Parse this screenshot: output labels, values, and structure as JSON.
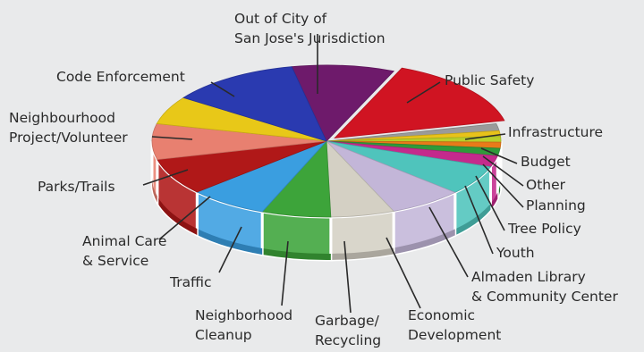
{
  "chart_data": {
    "type": "pie",
    "title": "",
    "categories": [
      "Out of City of San Jose's Jurisdiction",
      "Public Safety",
      "Infrastructure",
      "Budget",
      "Other",
      "Planning",
      "Tree Policy",
      "Youth",
      "Almaden Library & Community Center",
      "Economic Development",
      "Garbage/ Recycling",
      "Neighborhood Cleanup",
      "Traffic",
      "Animal Care & Service",
      "Parks/Trails",
      "Neighbourhood Project/Volunteer",
      "Code Enforcement"
    ],
    "values": [
      9.5,
      15.0,
      1.5,
      1.2,
      1.2,
      1.3,
      1.6,
      2.4,
      6.3,
      6.9,
      5.9,
      6.4,
      7.3,
      7.8,
      7.6,
      6.0,
      12.1
    ],
    "colors": [
      "#6e1a6b",
      "#d01422",
      "#9a9a9a",
      "#e8c21a",
      "#b8cf2a",
      "#e87a1a",
      "#2f9a3a",
      "#c42a8c",
      "#4fc4bc",
      "#c3b6d8",
      "#d4d0c4",
      "#3da43a",
      "#3a9ee0",
      "#b01818",
      "#e88070",
      "#e8c818",
      "#2a3ab0"
    ],
    "labels": [
      {
        "lines": [
          "Out of City of",
          "San Jose's Jurisdiction"
        ]
      },
      {
        "lines": [
          "Public Safety"
        ]
      },
      {
        "lines": [
          "Infrastructure"
        ]
      },
      {
        "lines": [
          "Budget"
        ]
      },
      {
        "lines": [
          "Other"
        ]
      },
      {
        "lines": [
          "Planning"
        ]
      },
      {
        "lines": [
          "Tree Policy"
        ]
      },
      {
        "lines": [
          "Youth"
        ]
      },
      {
        "lines": [
          "Almaden Library",
          "& Community Center"
        ]
      },
      {
        "lines": [
          "Economic",
          "Development"
        ]
      },
      {
        "lines": [
          "Garbage/",
          "Recycling"
        ]
      },
      {
        "lines": [
          "Neighborhood",
          "Cleanup"
        ]
      },
      {
        "lines": [
          "Traffic"
        ]
      },
      {
        "lines": [
          "Animal Care",
          "& Service"
        ]
      },
      {
        "lines": [
          "Parks/Trails"
        ]
      },
      {
        "lines": [
          "Neighbourhood",
          "Project/Volunteer"
        ]
      },
      {
        "lines": [
          "Code Enforcement"
        ]
      }
    ]
  }
}
